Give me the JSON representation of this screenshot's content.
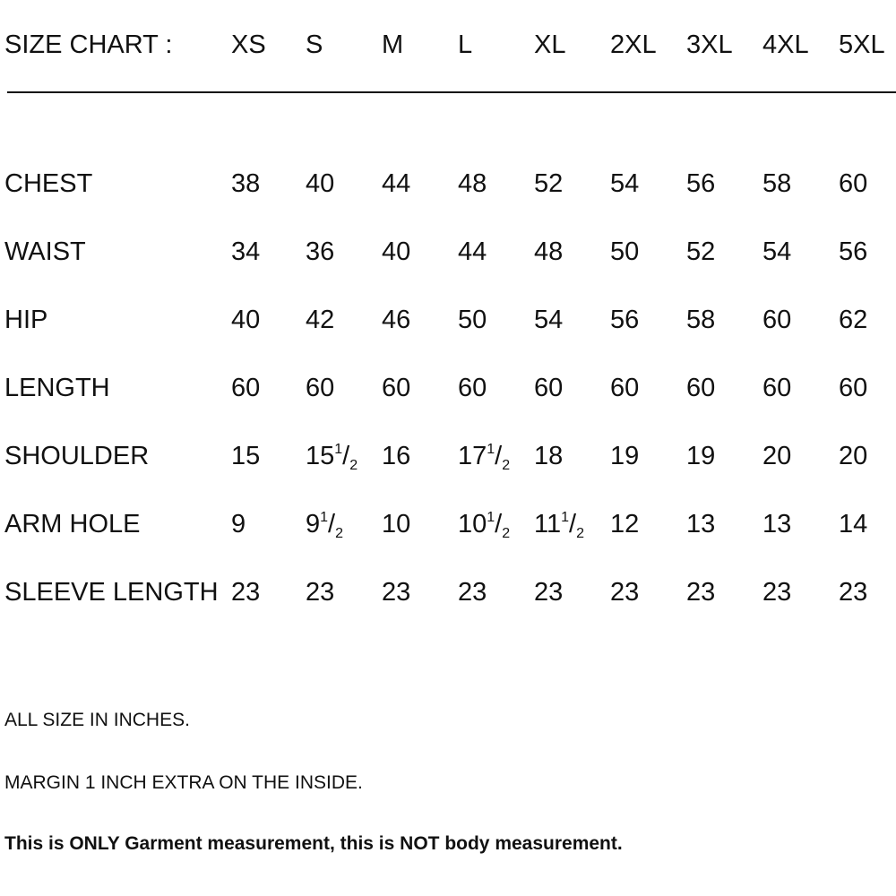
{
  "header": {
    "title": "SIZE CHART :",
    "sizes": [
      "XS",
      "S",
      "M",
      "L",
      "XL",
      "2XL",
      "3XL",
      "4XL",
      "5XL"
    ]
  },
  "rows": [
    {
      "label": "CHEST",
      "values": [
        {
          "v": "38"
        },
        {
          "v": "40"
        },
        {
          "v": "44"
        },
        {
          "v": "48"
        },
        {
          "v": "52"
        },
        {
          "v": "54"
        },
        {
          "v": "56"
        },
        {
          "v": "58"
        },
        {
          "v": "60"
        }
      ]
    },
    {
      "label": "WAIST",
      "values": [
        {
          "v": "34"
        },
        {
          "v": "36"
        },
        {
          "v": "40"
        },
        {
          "v": "44"
        },
        {
          "v": "48"
        },
        {
          "v": "50"
        },
        {
          "v": "52"
        },
        {
          "v": "54"
        },
        {
          "v": "56"
        }
      ]
    },
    {
      "label": "HIP",
      "values": [
        {
          "v": "40"
        },
        {
          "v": "42"
        },
        {
          "v": "46"
        },
        {
          "v": "50"
        },
        {
          "v": "54"
        },
        {
          "v": "56"
        },
        {
          "v": "58"
        },
        {
          "v": "60"
        },
        {
          "v": "62"
        }
      ]
    },
    {
      "label": "LENGTH",
      "values": [
        {
          "v": "60"
        },
        {
          "v": "60"
        },
        {
          "v": "60"
        },
        {
          "v": "60"
        },
        {
          "v": "60"
        },
        {
          "v": "60"
        },
        {
          "v": "60"
        },
        {
          "v": "60"
        },
        {
          "v": "60"
        }
      ]
    },
    {
      "label": "SHOULDER",
      "values": [
        {
          "v": "15"
        },
        {
          "v": "15",
          "num": "1",
          "den": "2"
        },
        {
          "v": "16"
        },
        {
          "v": "17",
          "num": "1",
          "den": "2"
        },
        {
          "v": "18"
        },
        {
          "v": "19"
        },
        {
          "v": "19"
        },
        {
          "v": "20"
        },
        {
          "v": "20"
        }
      ]
    },
    {
      "label": "ARM HOLE",
      "values": [
        {
          "v": "9"
        },
        {
          "v": "9",
          "num": "1",
          "den": "2"
        },
        {
          "v": "10"
        },
        {
          "v": "10",
          "num": "1",
          "den": "2"
        },
        {
          "v": "11",
          "num": "1",
          "den": "2"
        },
        {
          "v": "12"
        },
        {
          "v": "13"
        },
        {
          "v": "13"
        },
        {
          "v": "14"
        }
      ]
    },
    {
      "label": "SLEEVE LENGTH",
      "values": [
        {
          "v": "23"
        },
        {
          "v": "23"
        },
        {
          "v": "23"
        },
        {
          "v": "23"
        },
        {
          "v": "23"
        },
        {
          "v": "23"
        },
        {
          "v": "23"
        },
        {
          "v": "23"
        },
        {
          "v": "23"
        }
      ]
    }
  ],
  "notes": [
    "ALL SIZE IN INCHES.",
    "MARGIN 1 INCH EXTRA ON THE INSIDE.",
    "This is ONLY Garment measurement, this is NOT body measurement."
  ]
}
